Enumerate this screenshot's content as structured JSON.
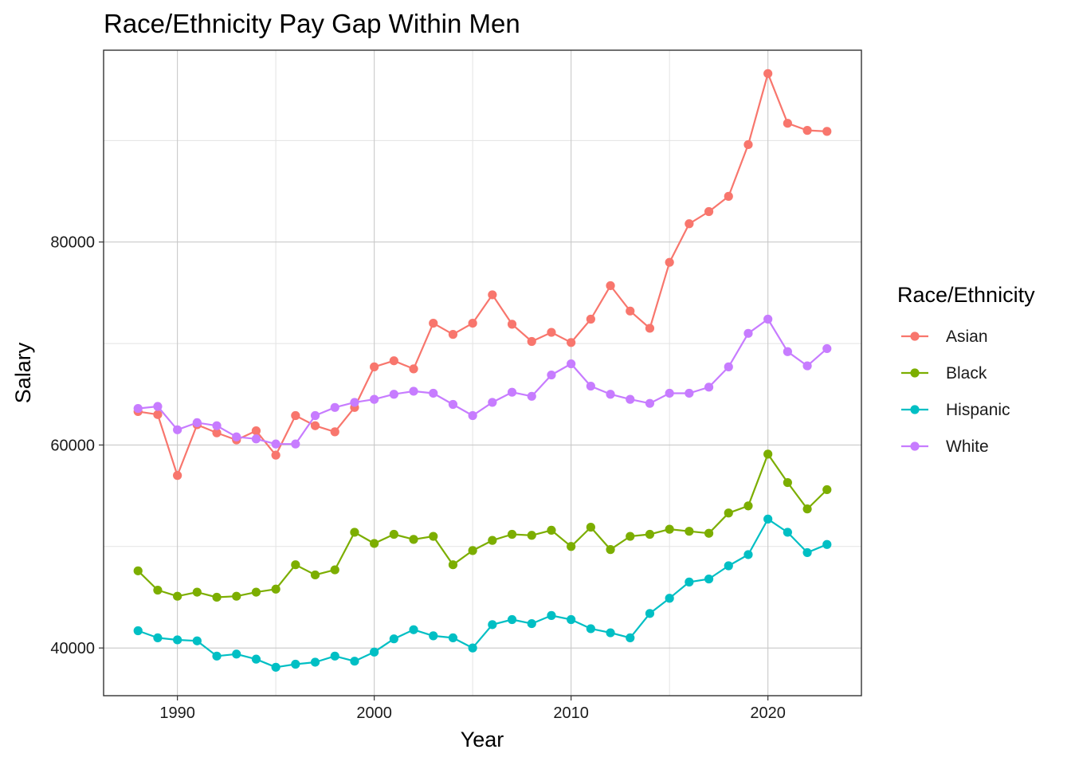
{
  "chart_data": {
    "type": "line",
    "title": "Race/Ethnicity Pay Gap Within Men",
    "xlabel": "Year",
    "ylabel": "Salary",
    "x_ticks": [
      1990,
      2000,
      2010,
      2020
    ],
    "y_ticks": [
      40000,
      60000,
      80000
    ],
    "xlim": [
      1986.25,
      2024.75
    ],
    "ylim": [
      35300,
      98900
    ],
    "grid": true,
    "legend_title": "Race/Ethnicity",
    "legend_position": "right",
    "x": [
      1988,
      1989,
      1990,
      1991,
      1992,
      1993,
      1994,
      1995,
      1996,
      1997,
      1998,
      1999,
      2000,
      2001,
      2002,
      2003,
      2004,
      2005,
      2006,
      2007,
      2008,
      2009,
      2010,
      2011,
      2012,
      2013,
      2014,
      2015,
      2016,
      2017,
      2018,
      2019,
      2020,
      2021,
      2022,
      2023
    ],
    "series": [
      {
        "name": "Asian",
        "color": "#F8766D",
        "values": [
          63300,
          63000,
          57000,
          62000,
          61200,
          60500,
          61400,
          59000,
          62900,
          61900,
          61300,
          63700,
          67700,
          68300,
          67500,
          72000,
          70900,
          72000,
          74800,
          71900,
          70200,
          71100,
          70100,
          72400,
          75700,
          73200,
          71500,
          78000,
          81800,
          83000,
          84500,
          89600,
          96600,
          91700,
          91000,
          90900
        ]
      },
      {
        "name": "Black",
        "color": "#7CAE00",
        "values": [
          47600,
          45700,
          45100,
          45500,
          45000,
          45100,
          45500,
          45800,
          48200,
          47200,
          47700,
          51400,
          50300,
          51200,
          50700,
          51000,
          48200,
          49600,
          50600,
          51200,
          51100,
          51600,
          50000,
          51900,
          49700,
          51000,
          51200,
          51700,
          51500,
          51300,
          53300,
          54000,
          59100,
          56300,
          53700,
          55600
        ]
      },
      {
        "name": "Hispanic",
        "color": "#00BFC4",
        "values": [
          41700,
          41000,
          40800,
          40700,
          39200,
          39400,
          38900,
          38100,
          38400,
          38600,
          39200,
          38700,
          39600,
          40900,
          41800,
          41200,
          41000,
          40000,
          42300,
          42800,
          42400,
          43200,
          42800,
          41900,
          41500,
          41000,
          43400,
          44900,
          46500,
          46800,
          48100,
          49200,
          52700,
          51400,
          49400,
          50200
        ]
      },
      {
        "name": "White",
        "color": "#C77CFF",
        "values": [
          63600,
          63800,
          61500,
          62200,
          61900,
          60800,
          60600,
          60100,
          60100,
          62900,
          63700,
          64200,
          64500,
          65000,
          65300,
          65100,
          64000,
          62900,
          64200,
          65200,
          64800,
          66900,
          68000,
          65800,
          65000,
          64500,
          64100,
          65100,
          65100,
          65700,
          67700,
          71000,
          72400,
          69200,
          67800,
          69500
        ]
      }
    ]
  }
}
